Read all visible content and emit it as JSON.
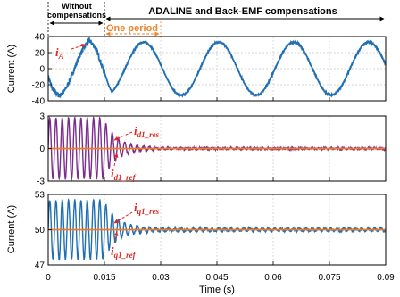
{
  "colors": {
    "current": "#1f6fb2",
    "d_current": "#7b2d8e",
    "reference": "#f47a20",
    "annotation": "#e0271e",
    "period": "#f0832a",
    "grid": "#c8c8c8"
  },
  "annotations": {
    "without_line1": "Without",
    "without_line2": "compensations",
    "adaline": "ADALINE and Back-EMF compensations",
    "one_period": "One period"
  },
  "x_axis": {
    "label": "Time (s)",
    "ticks": [
      "0",
      "0.015",
      "0.03",
      "0.045",
      "0.06",
      "0.075",
      "0.09"
    ]
  },
  "chart_data": [
    {
      "type": "line",
      "ylabel": "Current (A)",
      "xlim": [
        0,
        0.09
      ],
      "ylim": [
        -40,
        40
      ],
      "yticks": [
        "40",
        "20",
        "0",
        "-20",
        "-40"
      ],
      "grid": true,
      "label_base": "i",
      "label_sub": "A",
      "series": [
        {
          "color_key": "current",
          "description": "Phase current: distorted ~30 A peak sine before 0.015 s, clean ~33 A peak 50 Hz sine after",
          "x": [
            0,
            0.001,
            0.002,
            0.003,
            0.004,
            0.005,
            0.006,
            0.007,
            0.008,
            0.009,
            0.01,
            0.011,
            0.012,
            0.013,
            0.014,
            0.015
          ],
          "y": [
            -10,
            -24,
            -30,
            -34,
            -30,
            -22,
            -12,
            0,
            12,
            22,
            30,
            35,
            30,
            22,
            8,
            -5
          ],
          "amplitude_after": 33,
          "frequency_hz": 50
        }
      ]
    },
    {
      "type": "line",
      "ylabel": "",
      "xlim": [
        0,
        0.09
      ],
      "ylim": [
        -3,
        3
      ],
      "yticks": [
        "3",
        "0",
        "-3"
      ],
      "grid": true,
      "labels": [
        {
          "base": "i",
          "sub": "d1_res"
        },
        {
          "base": "i",
          "sub": "d1_ref"
        }
      ],
      "series": [
        {
          "color_key": "d_current",
          "description": "d1 response: ~2.8 A peak oscillation before 0.015 s, decaying to ~0.05 A after",
          "amplitude_before": 2.8,
          "amplitude_steady": 0.05,
          "frequency_hz": 600
        },
        {
          "color_key": "reference",
          "description": "d1 reference",
          "value": 0
        }
      ]
    },
    {
      "type": "line",
      "ylabel": "",
      "xlim": [
        0,
        0.09
      ],
      "ylim": [
        47,
        53
      ],
      "yticks": [
        "53",
        "50",
        "47"
      ],
      "grid": true,
      "labels": [
        {
          "base": "i",
          "sub": "q1_res"
        },
        {
          "base": "i",
          "sub": "q1_ref"
        }
      ],
      "series": [
        {
          "color_key": "current",
          "description": "q1 response: ~2.5 A oscillation around 50 A before 0.015 s, decaying to ~0.1 A after",
          "mean": 50,
          "amplitude_before": 2.5,
          "amplitude_steady": 0.1,
          "frequency_hz": 600
        },
        {
          "color_key": "reference",
          "description": "q1 reference",
          "value": 50
        }
      ]
    }
  ]
}
